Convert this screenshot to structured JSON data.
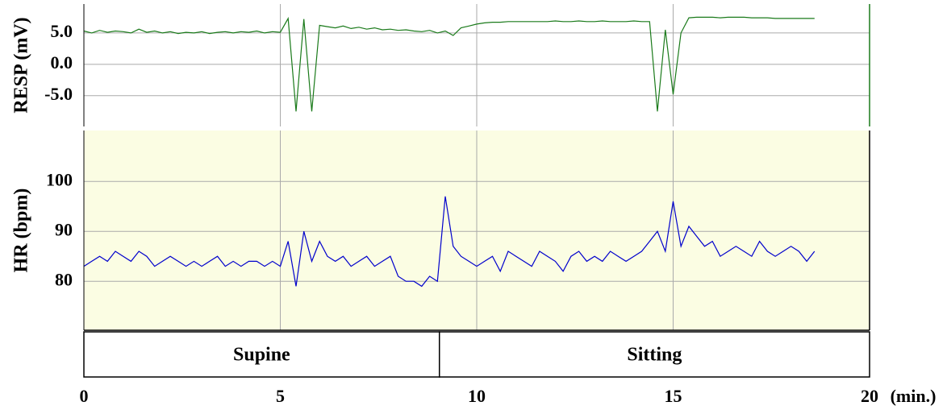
{
  "chart_data": [
    {
      "type": "line",
      "ylabel": "RESP (mV)",
      "color": "#1a7a1a",
      "x": [
        0,
        0.2,
        0.4,
        0.6,
        0.8,
        1,
        1.2,
        1.4,
        1.6,
        1.8,
        2,
        2.2,
        2.4,
        2.6,
        2.8,
        3,
        3.2,
        3.4,
        3.6,
        3.8,
        4,
        4.2,
        4.4,
        4.6,
        4.8,
        5,
        5.2,
        5.4,
        5.6,
        5.8,
        6,
        6.2,
        6.4,
        6.6,
        6.8,
        7,
        7.2,
        7.4,
        7.6,
        7.8,
        8,
        8.2,
        8.4,
        8.6,
        8.8,
        9,
        9.2,
        9.4,
        9.6,
        9.8,
        10,
        10.2,
        10.4,
        10.6,
        10.8,
        11,
        11.2,
        11.4,
        11.6,
        11.8,
        12,
        12.2,
        12.4,
        12.6,
        12.8,
        13,
        13.2,
        13.4,
        13.6,
        13.8,
        14,
        14.2,
        14.4,
        14.6,
        14.8,
        15,
        15.2,
        15.4,
        15.6,
        15.8,
        16,
        16.2,
        16.4,
        16.6,
        16.8,
        17,
        17.2,
        17.4,
        17.6,
        17.8,
        18,
        18.2,
        18.4,
        18.6
      ],
      "values": [
        5.3,
        5.0,
        5.4,
        5.1,
        5.3,
        5.2,
        5.0,
        5.6,
        5.1,
        5.3,
        5.0,
        5.2,
        4.9,
        5.1,
        5.0,
        5.2,
        4.9,
        5.1,
        5.2,
        5.0,
        5.2,
        5.1,
        5.3,
        5.0,
        5.2,
        5.1,
        7.3,
        -7.5,
        7.2,
        -7.5,
        6.2,
        6.0,
        5.8,
        6.1,
        5.7,
        5.9,
        5.6,
        5.8,
        5.5,
        5.6,
        5.4,
        5.5,
        5.3,
        5.2,
        5.4,
        5.0,
        5.3,
        4.6,
        5.8,
        6.1,
        6.4,
        6.6,
        6.7,
        6.7,
        6.8,
        6.8,
        6.8,
        6.8,
        6.8,
        6.8,
        6.9,
        6.8,
        6.8,
        6.9,
        6.8,
        6.8,
        6.9,
        6.8,
        6.8,
        6.8,
        6.9,
        6.8,
        6.8,
        -7.5,
        5.5,
        -4.8,
        5.0,
        7.4,
        7.5,
        7.5,
        7.5,
        7.4,
        7.5,
        7.5,
        7.5,
        7.4,
        7.4,
        7.4,
        7.3,
        7.3,
        7.3,
        7.3,
        7.3,
        7.3
      ],
      "xlim": [
        0,
        20
      ],
      "xticks": [
        0,
        5,
        10,
        15,
        20
      ],
      "ylim": [
        -9.9,
        9.6
      ],
      "yticks": [
        {
          "value": 5,
          "label": "5.0"
        },
        {
          "value": 0,
          "label": "0.0"
        },
        {
          "value": -5,
          "label": "-5.0"
        }
      ],
      "grid": true,
      "background": "#ffffff"
    },
    {
      "type": "line",
      "ylabel": "HR (bpm)",
      "xlabel": "(min.)",
      "color": "#0000cc",
      "x": [
        0,
        0.2,
        0.4,
        0.6,
        0.8,
        1,
        1.2,
        1.4,
        1.6,
        1.8,
        2,
        2.2,
        2.4,
        2.6,
        2.8,
        3,
        3.2,
        3.4,
        3.6,
        3.8,
        4,
        4.2,
        4.4,
        4.6,
        4.8,
        5,
        5.2,
        5.4,
        5.6,
        5.8,
        6,
        6.2,
        6.4,
        6.6,
        6.8,
        7,
        7.2,
        7.4,
        7.6,
        7.8,
        8,
        8.2,
        8.4,
        8.6,
        8.8,
        9,
        9.2,
        9.4,
        9.6,
        9.8,
        10,
        10.2,
        10.4,
        10.6,
        10.8,
        11,
        11.2,
        11.4,
        11.6,
        11.8,
        12,
        12.2,
        12.4,
        12.6,
        12.8,
        13,
        13.2,
        13.4,
        13.6,
        13.8,
        14,
        14.2,
        14.4,
        14.6,
        14.8,
        15,
        15.2,
        15.4,
        15.6,
        15.8,
        16,
        16.2,
        16.4,
        16.6,
        16.8,
        17,
        17.2,
        17.4,
        17.6,
        17.8,
        18,
        18.2,
        18.4,
        18.6
      ],
      "values": [
        83,
        84,
        85,
        84,
        86,
        85,
        84,
        86,
        85,
        83,
        84,
        85,
        84,
        83,
        84,
        83,
        84,
        85,
        83,
        84,
        83,
        84,
        84,
        83,
        84,
        83,
        88,
        79,
        90,
        84,
        88,
        85,
        84,
        85,
        83,
        84,
        85,
        83,
        84,
        85,
        81,
        80,
        80,
        79,
        81,
        80,
        97,
        87,
        85,
        84,
        83,
        84,
        85,
        82,
        86,
        85,
        84,
        83,
        86,
        85,
        84,
        82,
        85,
        86,
        84,
        85,
        84,
        86,
        85,
        84,
        85,
        86,
        88,
        90,
        86,
        96,
        87,
        91,
        89,
        87,
        88,
        85,
        86,
        87,
        86,
        85,
        88,
        86,
        85,
        86,
        87,
        86,
        84,
        86
      ],
      "xlim": [
        0,
        20
      ],
      "xticks": [
        0,
        5,
        10,
        15,
        20
      ],
      "ylim": [
        70.2,
        110.2
      ],
      "yticks": [
        80,
        90,
        100
      ],
      "grid": true,
      "background": "#fbfde3"
    }
  ],
  "phases": [
    {
      "label": "Supine",
      "start": 0,
      "end": 9.05
    },
    {
      "label": "Sitting",
      "start": 9.05,
      "end": 20
    }
  ]
}
